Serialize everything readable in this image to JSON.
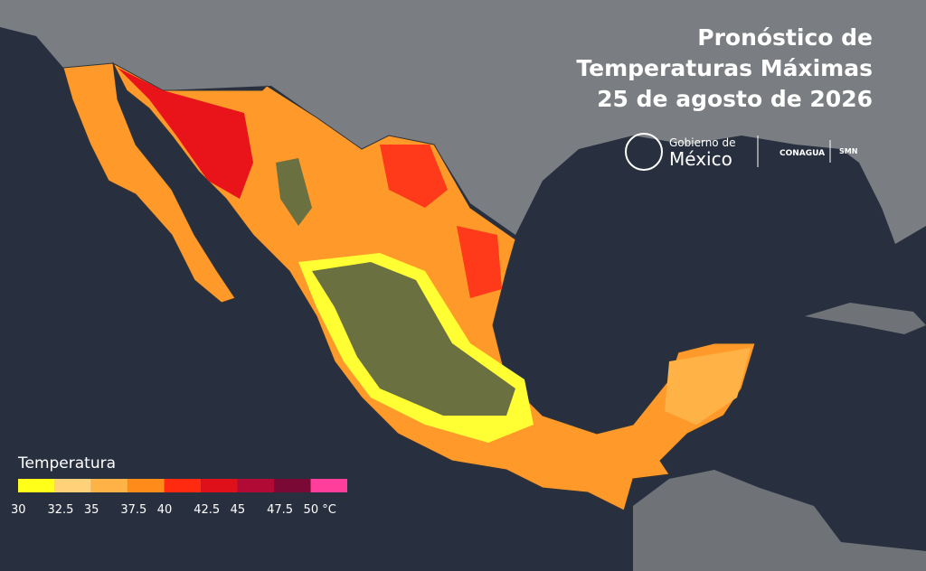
{
  "header": {
    "title_lines": [
      "Pronóstico de",
      "Temperaturas Máximas",
      "25 de agosto de 2026"
    ]
  },
  "logos": {
    "gobierno_line1": "Gobierno de",
    "gobierno_line2": "México",
    "conagua": "CONAGUA",
    "smn": "SMN"
  },
  "legend": {
    "title": "Temperatura",
    "labels": [
      "30",
      "32.5",
      "35",
      "37.5",
      "40",
      "42.5",
      "45",
      "47.5",
      "50 °C"
    ],
    "colors": [
      "#ffff1a",
      "#ffd27a",
      "#ffb347",
      "#ff8c1a",
      "#ff2a10",
      "#e0101a",
      "#b00a35",
      "#7a0a35",
      "#ff3d9a"
    ]
  }
}
